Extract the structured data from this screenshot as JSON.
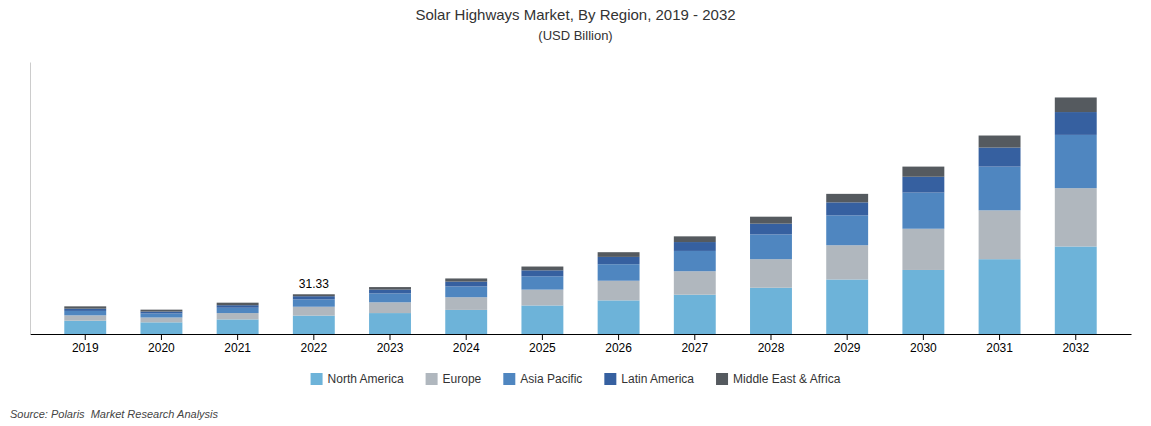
{
  "chart_data": {
    "type": "bar",
    "stacked": true,
    "title": "Solar Highways Market, By Region, 2019 - 2032",
    "subtitle": "(USD Billion)",
    "source": "Source: Polaris  Market Research Analysis",
    "categories": [
      "2019",
      "2020",
      "2021",
      "2022",
      "2023",
      "2024",
      "2025",
      "2026",
      "2027",
      "2028",
      "2029",
      "2030",
      "2031",
      "2032"
    ],
    "series": [
      {
        "name": "North America",
        "color": "#6db3d9",
        "values": [
          10.5,
          9.2,
          11.5,
          14.5,
          16.5,
          19.0,
          22.5,
          26.5,
          31.0,
          36.5,
          43.0,
          50.5,
          59.0,
          69.0
        ]
      },
      {
        "name": "Europe",
        "color": "#b0b7be",
        "values": [
          4.2,
          3.8,
          5.0,
          7.0,
          8.5,
          10.0,
          12.5,
          15.5,
          18.5,
          22.5,
          27.0,
          32.5,
          38.5,
          46.0
        ]
      },
      {
        "name": "Asia Pacific",
        "color": "#4f86c0",
        "values": [
          3.5,
          3.2,
          4.2,
          5.8,
          7.0,
          8.5,
          10.5,
          13.0,
          16.0,
          19.5,
          23.5,
          28.5,
          34.5,
          42.0
        ]
      },
      {
        "name": "Latin America",
        "color": "#3660a0",
        "values": [
          1.8,
          1.5,
          2.0,
          2.5,
          3.0,
          3.8,
          4.7,
          5.8,
          7.0,
          8.5,
          10.3,
          12.5,
          15.0,
          18.0
        ]
      },
      {
        "name": "Middle East & Africa",
        "color": "#555a5f",
        "values": [
          1.8,
          1.5,
          2.0,
          1.53,
          2.0,
          2.5,
          3.0,
          3.7,
          4.5,
          5.5,
          6.7,
          8.0,
          9.5,
          11.5
        ]
      }
    ],
    "annotations": [
      {
        "text": "31.33",
        "category": "2022"
      }
    ],
    "ylim": [
      0,
      214.475
    ],
    "tick_labels": "x",
    "grid": false,
    "legend": "bottom"
  }
}
